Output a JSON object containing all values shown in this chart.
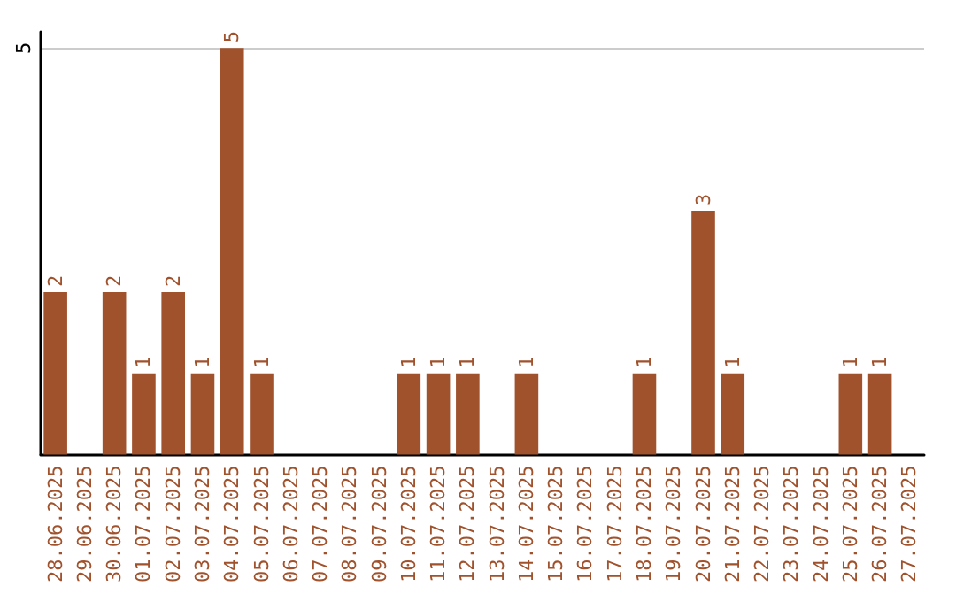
{
  "chart_data": {
    "type": "bar",
    "categories": [
      "28.06.2025",
      "29.06.2025",
      "30.06.2025",
      "01.07.2025",
      "02.07.2025",
      "03.07.2025",
      "04.07.2025",
      "05.07.2025",
      "06.07.2025",
      "07.07.2025",
      "08.07.2025",
      "09.07.2025",
      "10.07.2025",
      "11.07.2025",
      "12.07.2025",
      "13.07.2025",
      "14.07.2025",
      "15.07.2025",
      "16.07.2025",
      "17.07.2025",
      "18.07.2025",
      "19.07.2025",
      "20.07.2025",
      "21.07.2025",
      "22.07.2025",
      "23.07.2025",
      "24.07.2025",
      "25.07.2025",
      "26.07.2025",
      "27.07.2025"
    ],
    "values": [
      2,
      null,
      2,
      1,
      2,
      1,
      5,
      1,
      null,
      null,
      null,
      null,
      1,
      1,
      1,
      null,
      1,
      null,
      null,
      null,
      1,
      null,
      3,
      1,
      null,
      null,
      null,
      1,
      1,
      null
    ],
    "color": "#a0522d",
    "ylim": [
      0,
      5.2
    ],
    "yticks": [
      5
    ],
    "grid": "y",
    "data_labels": true
  }
}
